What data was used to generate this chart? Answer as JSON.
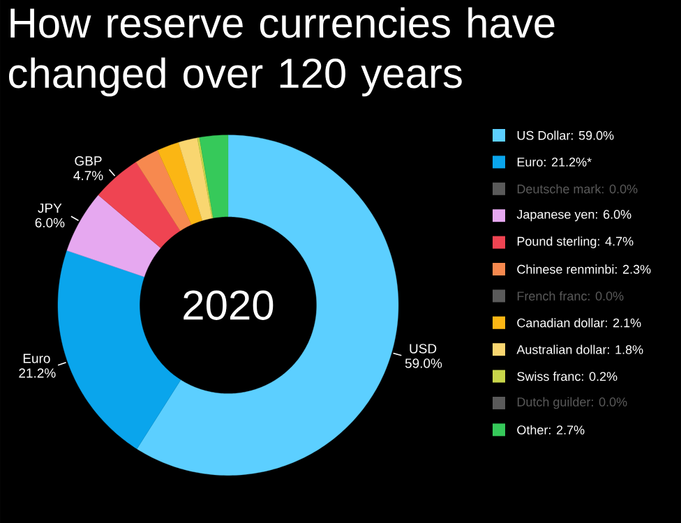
{
  "chart_data": {
    "type": "donut",
    "title": "How reserve currencies have changed over 120 years",
    "subtitle": "2020",
    "categories": [
      "US Dollar: 59.0%",
      "Euro: 21.2%*",
      "Deutsche mark: 0.0%",
      "Japanese yen: 6.0%",
      "Pound sterling: 4.7%",
      "Chinese renminbi: 2.3%",
      "French franc: 0.0%",
      "Canadian dollar: 2.1%",
      "Australian dollar: 1.8%",
      "Swiss franc: 0.2%",
      "Dutch guilder: 0.0%",
      "Other: 2.7%"
    ],
    "values": [
      59.0,
      21.2,
      0.0,
      6.0,
      4.7,
      2.3,
      0.0,
      2.1,
      1.8,
      0.2,
      0.0,
      2.7
    ],
    "colors": [
      "#5ccfff",
      "#0aa5ec",
      "#5a5a5a",
      "#e6a8f0",
      "#ef4452",
      "#f7894f",
      "#5a5a5a",
      "#fbb614",
      "#f9d670",
      "#c8d64a",
      "#5a5a5a",
      "#36c95a"
    ],
    "value_labels": [
      "USD 59.0%",
      "Euro 21.2%",
      null,
      "JPY 6.0%",
      "GBP 4.7%",
      null,
      null,
      null,
      null,
      null,
      null,
      null
    ],
    "legend": "right"
  }
}
